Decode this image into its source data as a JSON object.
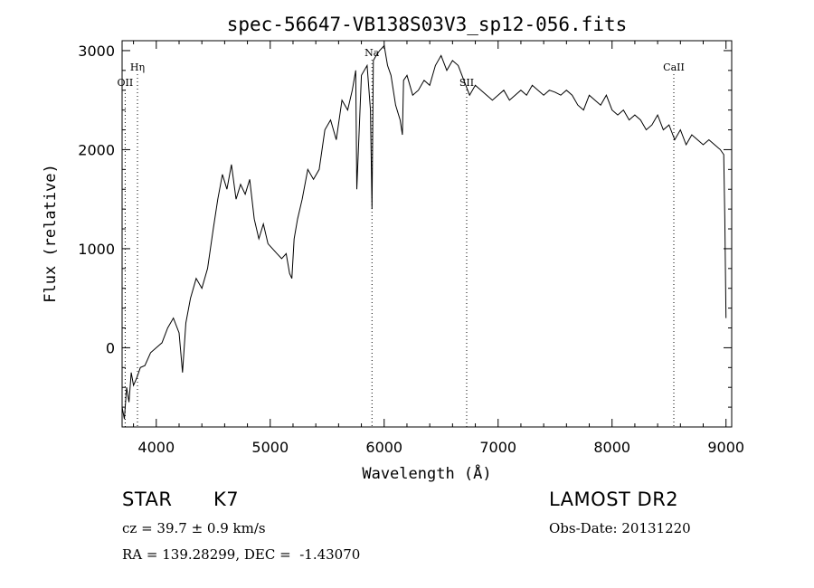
{
  "chart_data": {
    "type": "line",
    "title": "spec-56647-VB138S03V3_sp12-056.fits",
    "xlabel": "Wavelength (Å)",
    "ylabel": "Flux (relative)",
    "xlim": [
      3700,
      9050
    ],
    "ylim": [
      -800,
      3100
    ],
    "x_ticks": [
      4000,
      5000,
      6000,
      7000,
      8000,
      9000
    ],
    "y_ticks": [
      0,
      1000,
      2000,
      3000
    ],
    "grid": false,
    "line_color": "#000000",
    "series": [
      {
        "x": [
          3700,
          3720,
          3740,
          3760,
          3780,
          3800,
          3830,
          3860,
          3900,
          3950,
          4000,
          4050,
          4100,
          4150,
          4200,
          4230,
          4260,
          4300,
          4350,
          4400,
          4450,
          4500,
          4540,
          4580,
          4620,
          4660,
          4700,
          4740,
          4780,
          4820,
          4860,
          4900,
          4940,
          4980,
          5020,
          5060,
          5100,
          5140,
          5170,
          5190,
          5210,
          5240,
          5280,
          5330,
          5380,
          5430,
          5480,
          5530,
          5580,
          5630,
          5680,
          5720,
          5750,
          5760,
          5800,
          5850,
          5880,
          5893,
          5905,
          5930,
          5960,
          6000,
          6030,
          6060,
          6100,
          6140,
          6160,
          6170,
          6200,
          6250,
          6300,
          6350,
          6400,
          6450,
          6500,
          6550,
          6600,
          6650,
          6700,
          6750,
          6800,
          6850,
          6900,
          6950,
          7000,
          7050,
          7100,
          7150,
          7200,
          7250,
          7300,
          7350,
          7400,
          7450,
          7500,
          7550,
          7600,
          7650,
          7700,
          7750,
          7800,
          7850,
          7900,
          7950,
          8000,
          8050,
          8100,
          8150,
          8200,
          8250,
          8300,
          8350,
          8400,
          8450,
          8500,
          8550,
          8600,
          8650,
          8700,
          8750,
          8800,
          8850,
          8900,
          8950,
          8980,
          8990,
          9000
        ],
        "y": [
          -600,
          -720,
          -400,
          -550,
          -250,
          -380,
          -300,
          -200,
          -180,
          -50,
          0,
          50,
          200,
          300,
          150,
          -250,
          250,
          500,
          700,
          600,
          800,
          1200,
          1500,
          1750,
          1600,
          1850,
          1500,
          1650,
          1550,
          1700,
          1300,
          1100,
          1250,
          1050,
          1000,
          950,
          900,
          950,
          750,
          700,
          1100,
          1300,
          1500,
          1800,
          1700,
          1800,
          2200,
          2300,
          2100,
          2500,
          2400,
          2600,
          2800,
          1600,
          2750,
          2850,
          2400,
          1400,
          2900,
          2950,
          3000,
          3050,
          2850,
          2750,
          2450,
          2300,
          2150,
          2700,
          2750,
          2550,
          2600,
          2700,
          2650,
          2850,
          2950,
          2800,
          2900,
          2850,
          2700,
          2550,
          2650,
          2600,
          2550,
          2500,
          2550,
          2600,
          2500,
          2550,
          2600,
          2550,
          2650,
          2600,
          2550,
          2600,
          2580,
          2550,
          2600,
          2550,
          2450,
          2400,
          2550,
          2500,
          2450,
          2550,
          2400,
          2350,
          2400,
          2300,
          2350,
          2300,
          2200,
          2250,
          2350,
          2200,
          2250,
          2100,
          2200,
          2050,
          2150,
          2100,
          2050,
          2100,
          2050,
          2000,
          1950,
          1300,
          300
        ]
      }
    ],
    "line_markers": [
      {
        "label": "Hη",
        "x": 3835
      },
      {
        "label": "OII",
        "x": 3727
      },
      {
        "label": "Na",
        "x": 5893
      },
      {
        "label": "SII",
        "x": 6724
      },
      {
        "label": "CaII",
        "x": 8542
      }
    ]
  },
  "info": {
    "class": "STAR",
    "subclass": "K7",
    "survey": "LAMOST DR2",
    "cz_line": "cz = 39.7 ± 0.9 km/s",
    "obs_date": "Obs-Date: 20131220",
    "radec": "RA = 139.28299, DEC =  -1.43070"
  }
}
